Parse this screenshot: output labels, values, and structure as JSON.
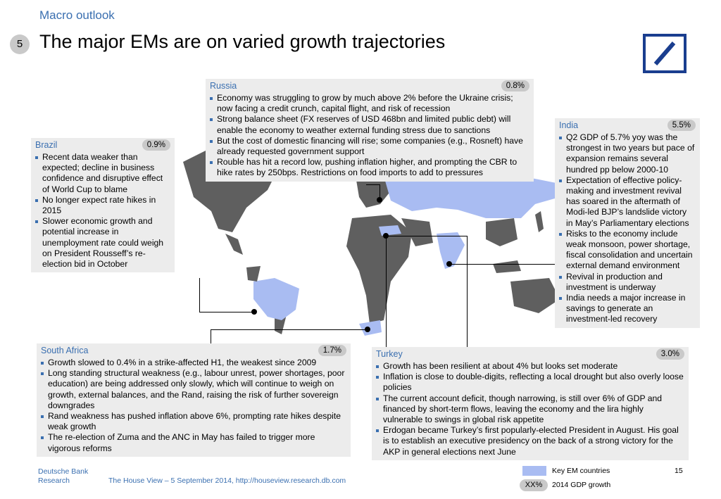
{
  "header": {
    "section": "Macro outlook",
    "page_badge": "5",
    "title": "The major EMs are on varied growth trajectories",
    "logo_icon": "deutsche-bank-logo"
  },
  "colors": {
    "accent": "#3a6fb0",
    "highlight_country": "#a9bcf2",
    "box_bg": "#ececec",
    "pill": "#c9c9c9"
  },
  "boxes": {
    "russia": {
      "country": "Russia",
      "growth": "0.8%",
      "bullets": [
        "Economy was struggling to grow by much above 2% before the Ukraine crisis; now facing a credit crunch, capital flight, and risk of recession",
        "Strong balance sheet (FX reserves of USD 468bn and limited public debt) will enable the economy to weather external funding stress due to sanctions",
        "But the cost of domestic financing will rise; some companies (e.g., Rosneft) have already requested government support",
        "Rouble has hit a record low, pushing inflation higher, and prompting the CBR to hike rates by 250bps. Restrictions on food imports to add to pressures"
      ]
    },
    "brazil": {
      "country": "Brazil",
      "growth": "0.9%",
      "bullets": [
        "Recent data weaker than expected; decline in business confidence and disruptive effect of World Cup to blame",
        "No longer expect rate hikes in 2015",
        "Slower economic growth and potential increase in unemployment rate could weigh on President Rousseff’s re-election bid in October"
      ]
    },
    "india": {
      "country": "India",
      "growth": "5.5%",
      "bullets": [
        "Q2 GDP of 5.7% yoy was the strongest in two years but pace of expansion remains several hundred pp below 2000-10",
        "Expectation of effective policy-making and investment revival has soared in the aftermath of Modi-led BJP’s landslide victory in May’s Parliamentary elections",
        "Risks to the economy include weak monsoon, power shortage, fiscal consolidation and uncertain external demand environment",
        "Revival in production and investment is underway",
        "India needs a major increase in savings to generate an investment-led recovery"
      ]
    },
    "south_africa": {
      "country": "South Africa",
      "growth": "1.7%",
      "bullets": [
        "Growth slowed to 0.4% in a strike-affected H1, the weakest since 2009",
        "Long standing structural weakness (e.g., labour unrest, power shortages, poor education) are being addressed only slowly, which will continue to weigh on growth, external balances, and the Rand, raising the risk of further sovereign downgrades",
        "Rand weakness has pushed inflation above 6%, prompting rate hikes despite weak growth",
        "The re-election of Zuma and the ANC in May has failed to trigger more vigorous reforms"
      ]
    },
    "turkey": {
      "country": "Turkey",
      "growth": "3.0%",
      "bullets": [
        "Growth has been resilient at about 4% but looks set moderate",
        "Inflation is close to double-digits, reflecting a local drought but also overly loose policies",
        "The current account deficit, though narrowing, is still over 6% of GDP and financed by short-term flows, leaving the economy and the lira highly vulnerable to swings in global risk appetite",
        "Erdogan became Turkey’s first popularly-elected President in August. His goal is to establish an executive presidency on the back of a strong victory for the AKP in general elections next June"
      ]
    }
  },
  "footer": {
    "brand_line1": "Deutsche Bank",
    "brand_line2": "Research",
    "source": "The House View – 5 September 2014, http://houseview.research.db.com",
    "page_number": "15",
    "legend_key_label": "Key EM countries",
    "legend_pill_text": "XX%",
    "legend_pill_label": "2014 GDP growth"
  }
}
